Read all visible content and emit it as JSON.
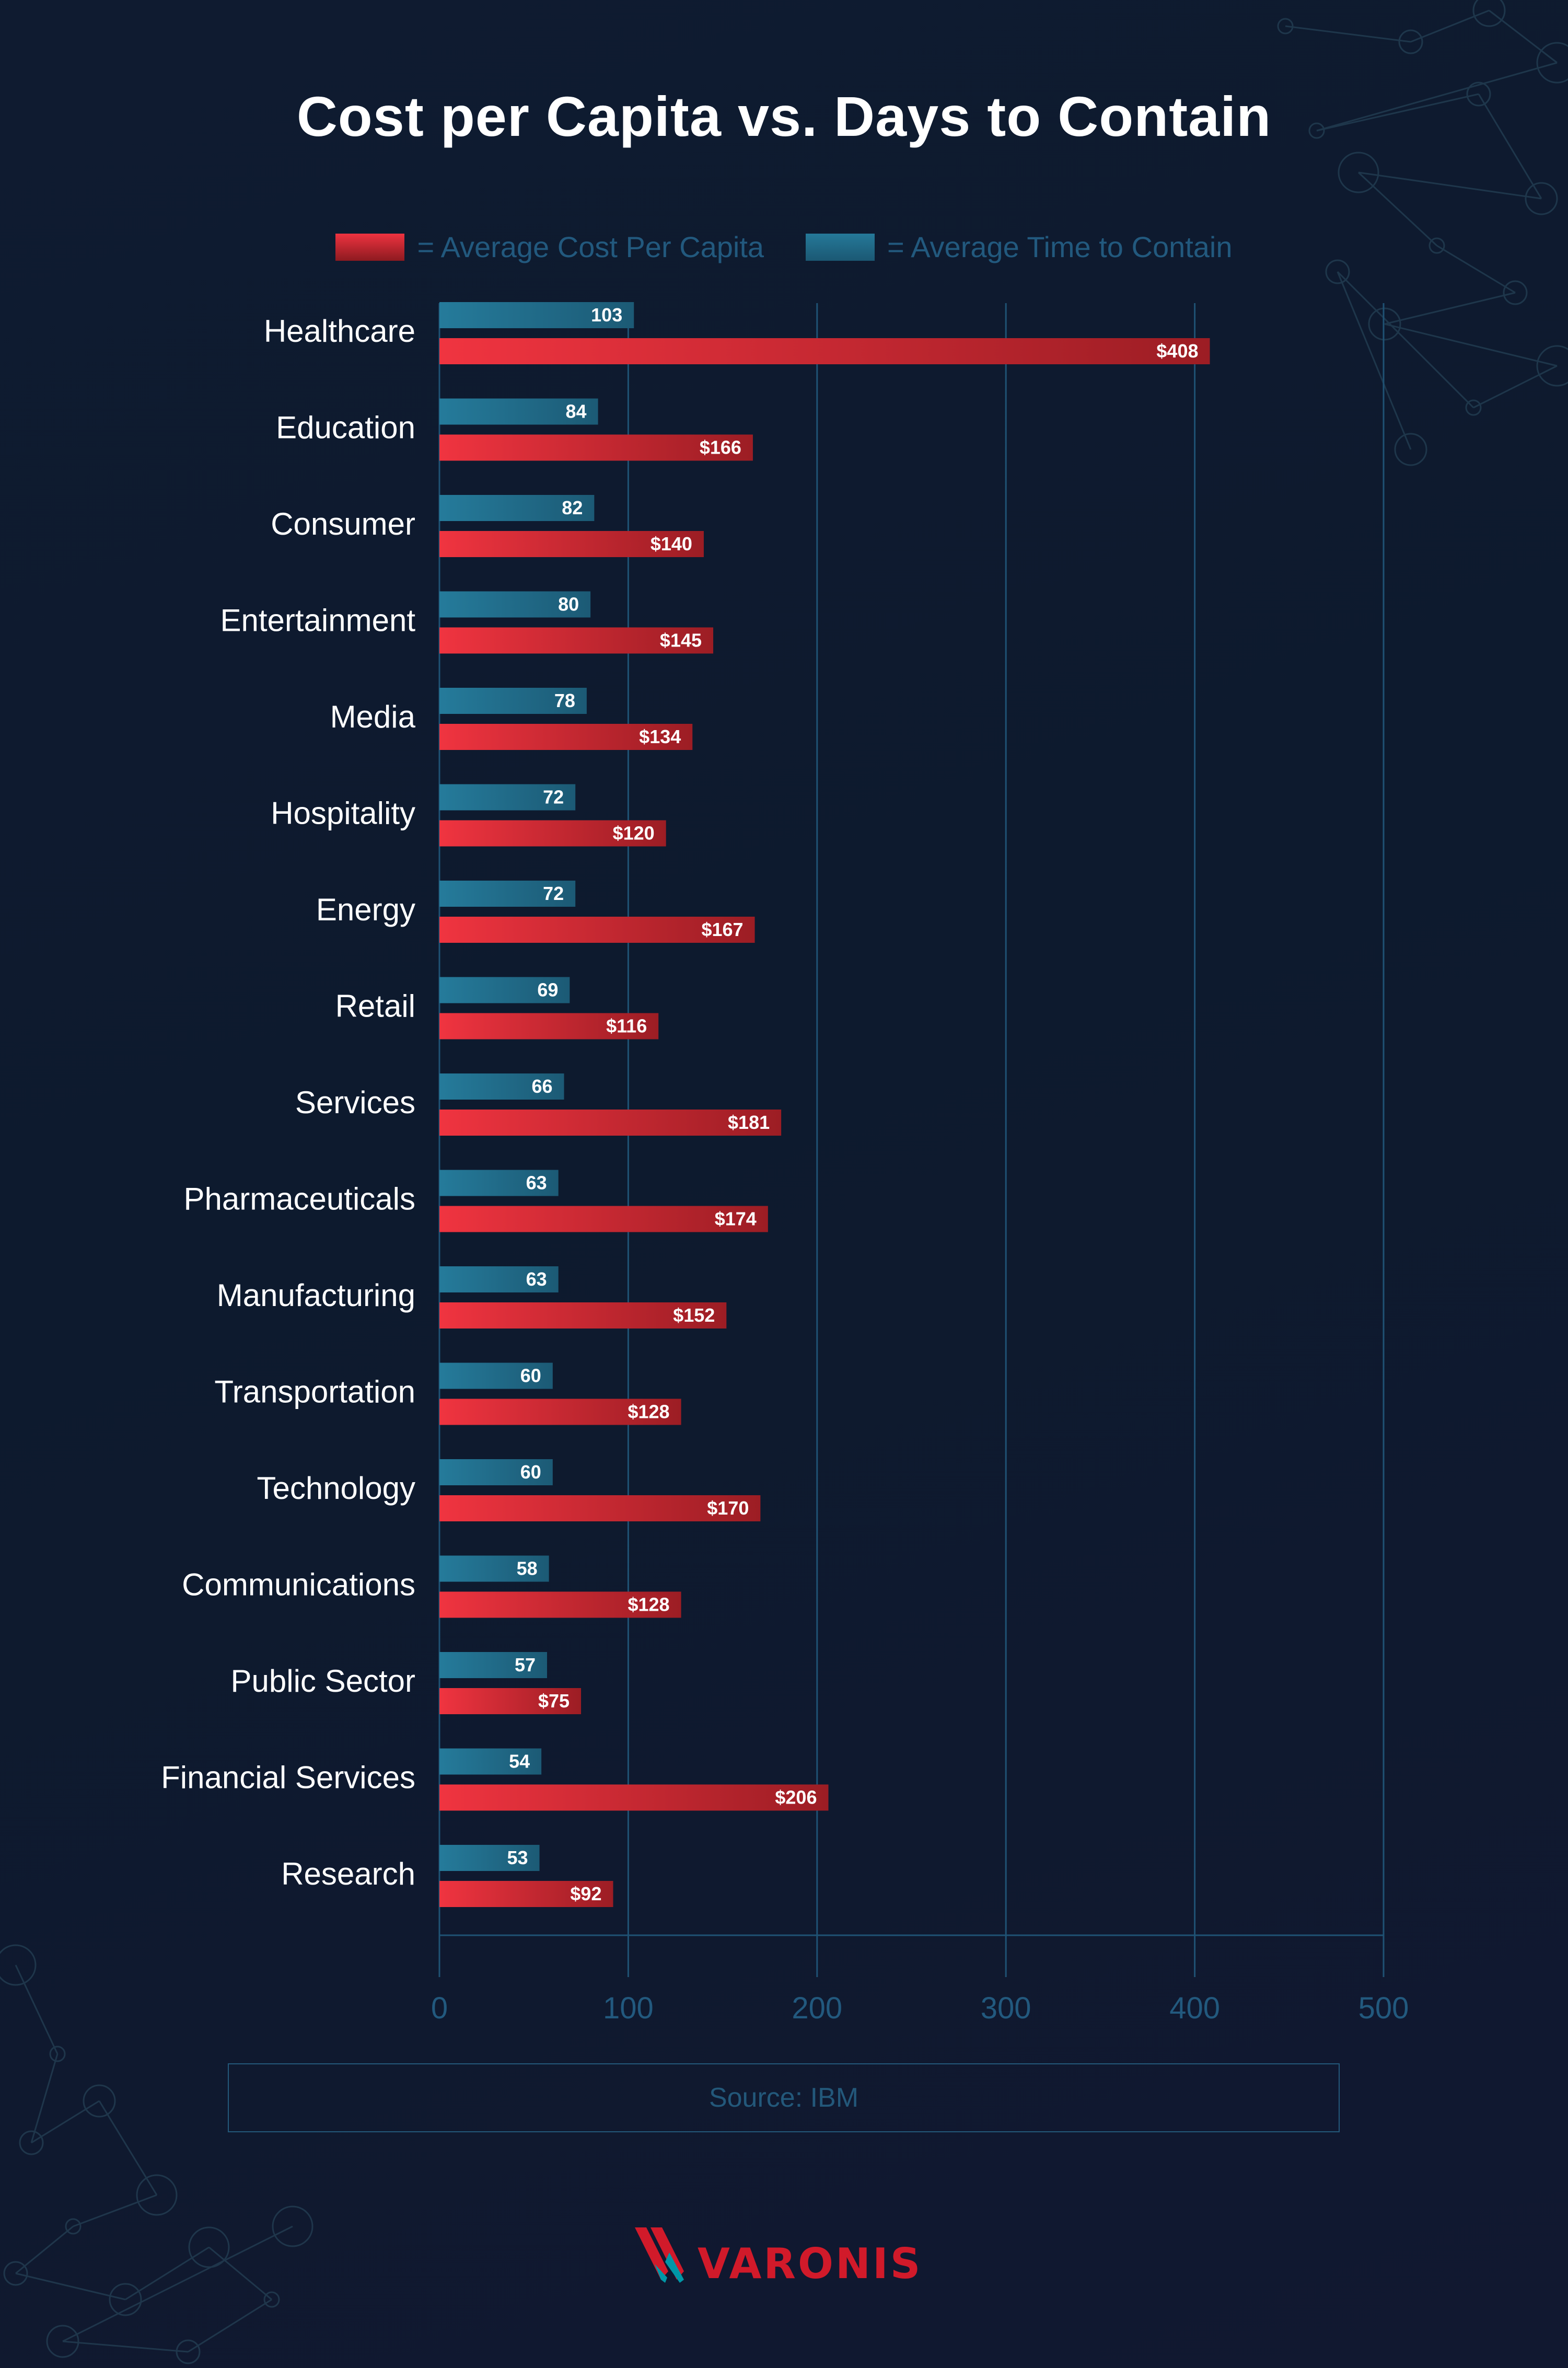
{
  "chart_data": {
    "type": "bar",
    "orientation": "horizontal",
    "title": "Cost per Capita vs. Days to Contain",
    "categories": [
      "Healthcare",
      "Education",
      "Consumer",
      "Entertainment",
      "Media",
      "Hospitality",
      "Energy",
      "Retail",
      "Services",
      "Pharmaceuticals",
      "Manufacturing",
      "Transportation",
      "Technology",
      "Communications",
      "Public Sector",
      "Financial Services",
      "Research"
    ],
    "series": [
      {
        "name": "= Average Time to Contain",
        "color": "#247796",
        "values": [
          103,
          84,
          82,
          80,
          78,
          72,
          72,
          69,
          66,
          63,
          63,
          60,
          60,
          58,
          57,
          54,
          53
        ],
        "labels": [
          "103",
          "84",
          "82",
          "80",
          "78",
          "72",
          "72",
          "69",
          "66",
          "63",
          "63",
          "60",
          "60",
          "58",
          "57",
          "54",
          "53"
        ]
      },
      {
        "name": "= Average Cost Per Capita",
        "color": "#e8303c",
        "values": [
          408,
          166,
          140,
          145,
          134,
          120,
          167,
          116,
          181,
          174,
          152,
          128,
          170,
          128,
          75,
          206,
          92
        ],
        "labels": [
          "$408",
          "$166",
          "$140",
          "$145",
          "$134",
          "$120",
          "$167",
          "$116",
          "$181",
          "$174",
          "$152",
          "$128",
          "$170",
          "$128",
          "$75",
          "$206",
          "$92"
        ]
      }
    ],
    "xlim": [
      0,
      500
    ],
    "xticks": [
      "0",
      "100",
      "200",
      "300",
      "400",
      "500"
    ],
    "grid": true,
    "legend_position": "top"
  },
  "source": "Source: IBM",
  "logo_text": "VARONIS",
  "colors": {
    "background": "#0e1a2f",
    "axis": "#1f5274",
    "logo_red": "#d11a2a",
    "logo_teal": "#0097a7"
  }
}
